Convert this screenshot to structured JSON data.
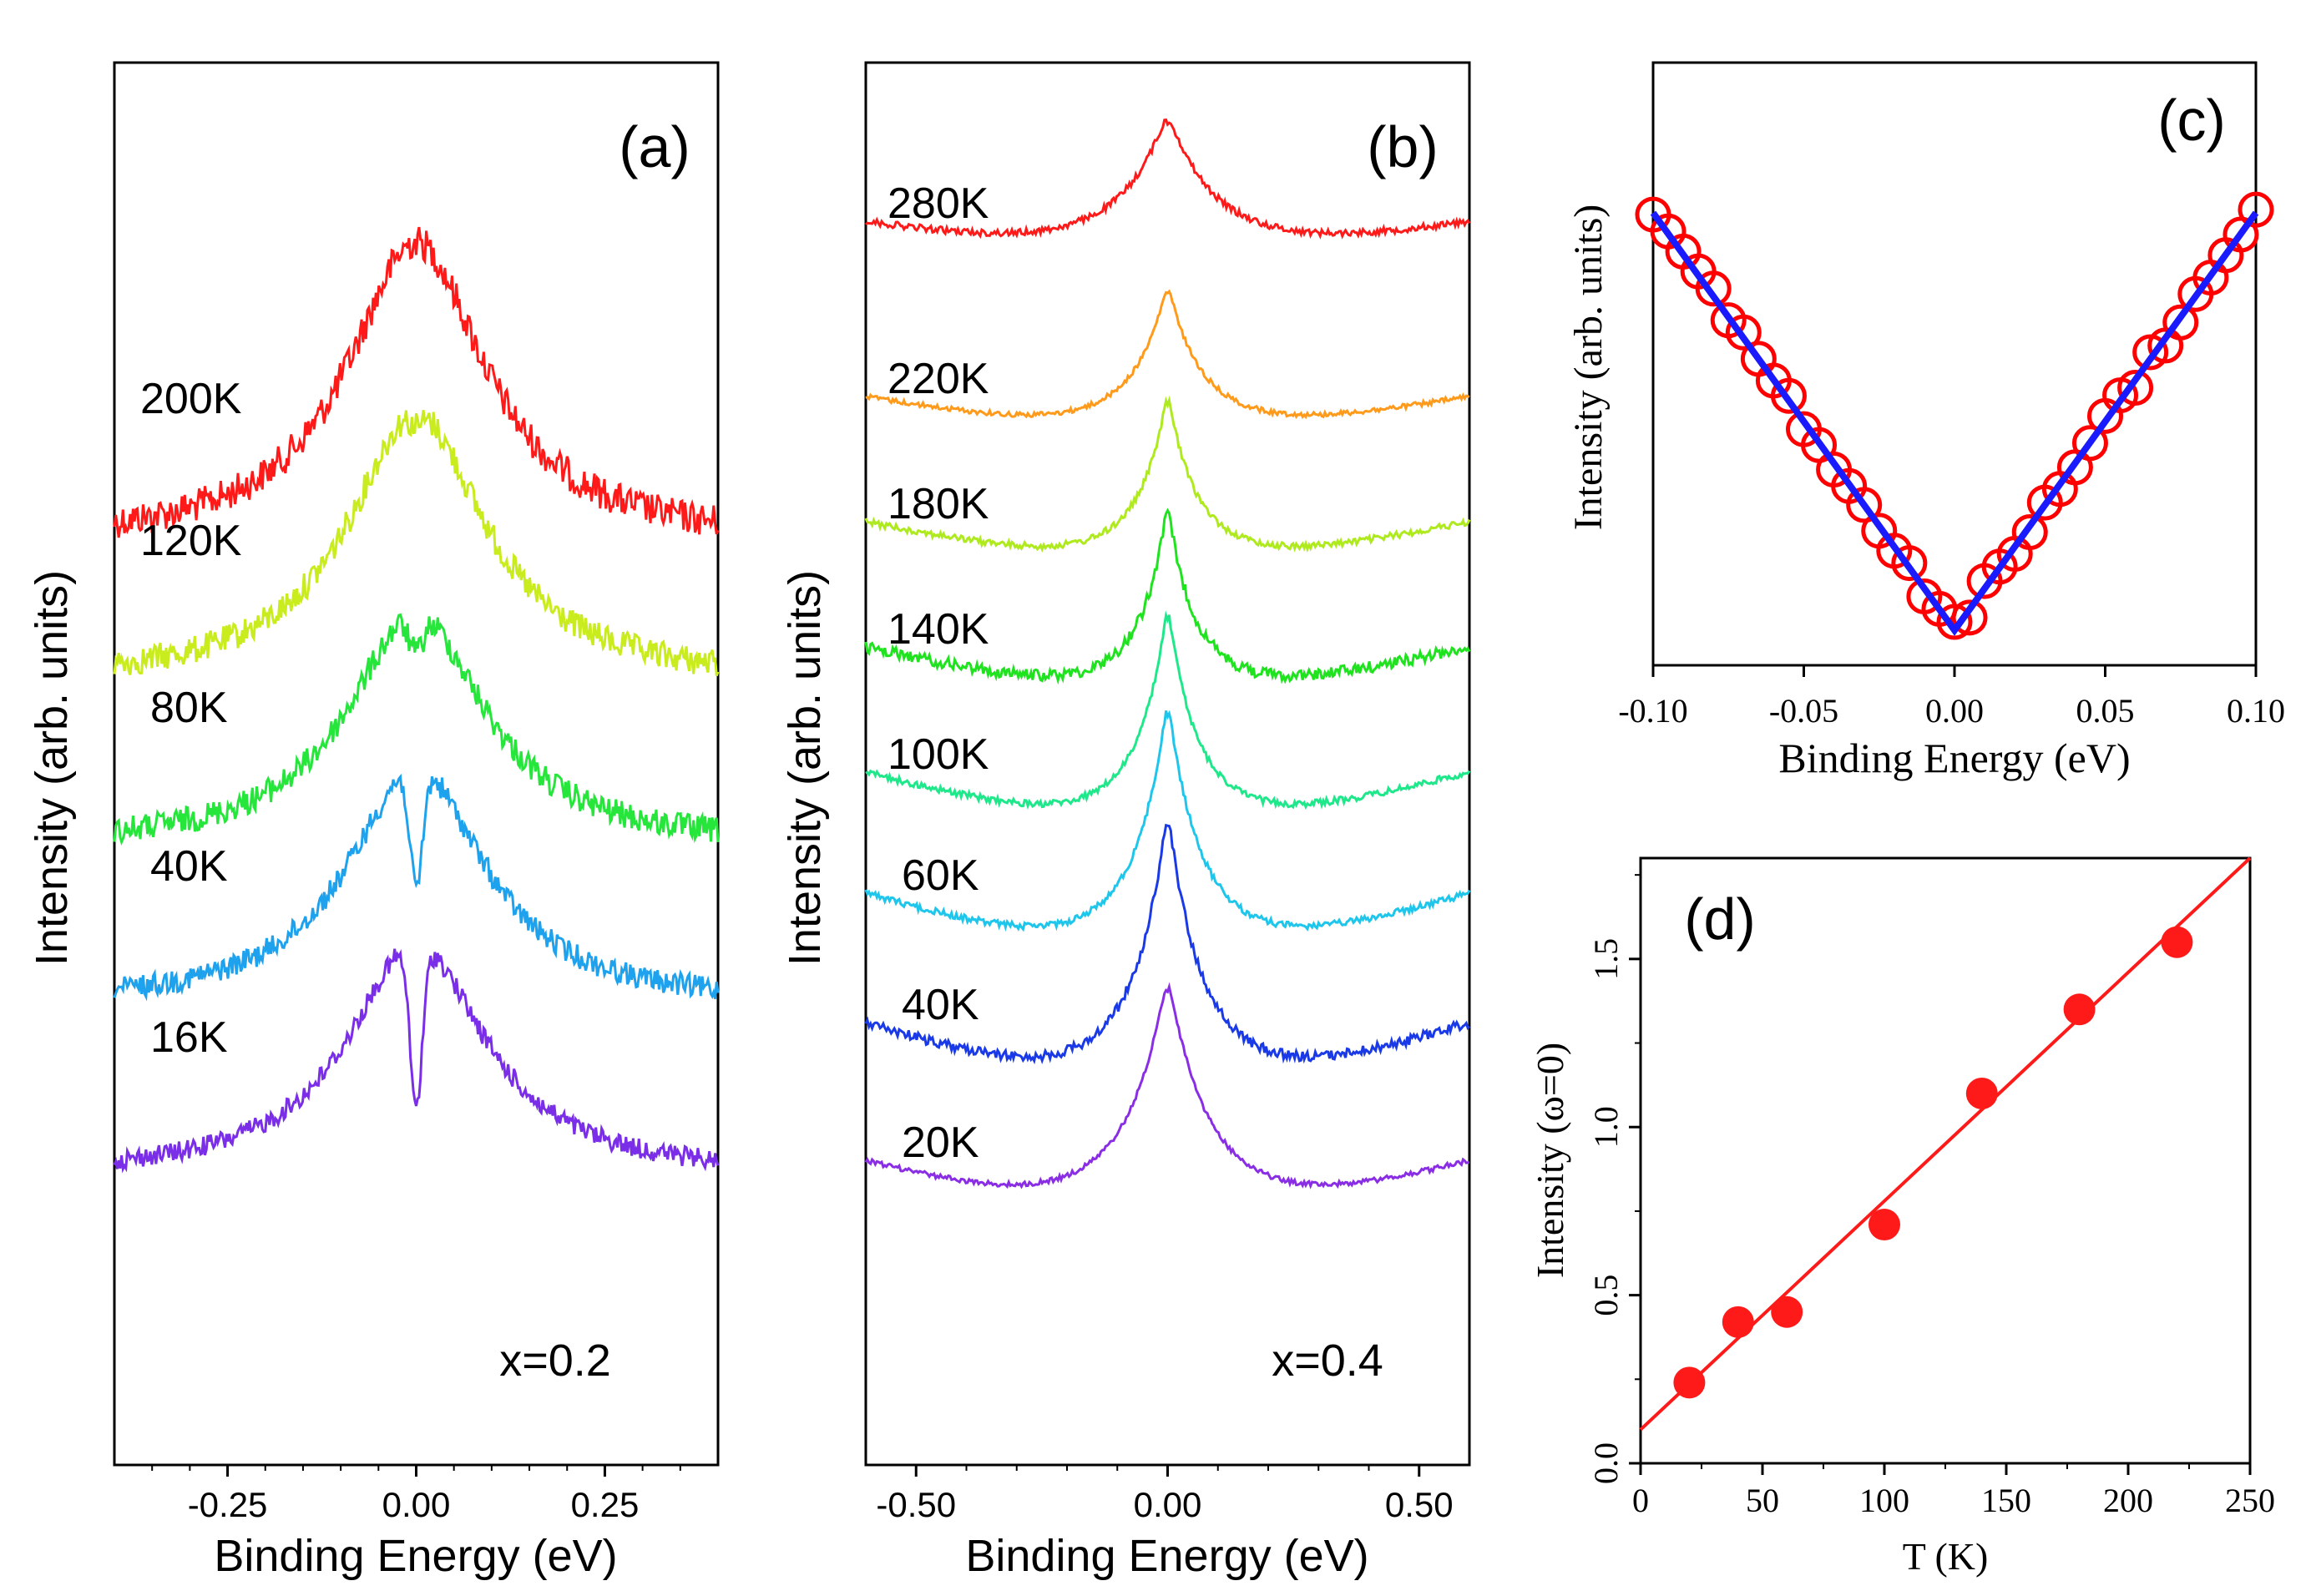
{
  "chart_data": [
    {
      "panel": "(a)",
      "type": "line",
      "title": "",
      "xlabel": "Binding Energy (eV)",
      "ylabel": "Intensity (arb. units)",
      "xlim": [
        -0.4,
        0.4
      ],
      "xticks": [
        -0.25,
        0.0,
        0.25
      ],
      "xtick_labels": [
        "-0.25",
        "0.00",
        "0.25"
      ],
      "annotation": "x=0.2",
      "series": [
        {
          "name": "200K",
          "color": "#ff1a1a"
        },
        {
          "name": "120K",
          "color": "#c8ec1e"
        },
        {
          "name": "80K",
          "color": "#26e63c"
        },
        {
          "name": "40K",
          "color": "#1fa2ee"
        },
        {
          "name": "16K",
          "color": "#7a2ee8"
        }
      ]
    },
    {
      "panel": "(b)",
      "type": "line",
      "title": "",
      "xlabel": "Binding Energy (eV)",
      "ylabel": "Intensity (arb. units)",
      "xlim": [
        -0.6,
        0.6
      ],
      "xticks": [
        -0.5,
        0.0,
        0.5
      ],
      "xtick_labels": [
        "-0.50",
        "0.00",
        "0.50"
      ],
      "annotation": "x=0.4",
      "series": [
        {
          "name": "280K",
          "color": "#ff1a1a"
        },
        {
          "name": "220K",
          "color": "#ff9a1a"
        },
        {
          "name": "180K",
          "color": "#aeea1e"
        },
        {
          "name": "140K",
          "color": "#1ee31e"
        },
        {
          "name": "100K",
          "color": "#1ee88a"
        },
        {
          "name": "60K",
          "color": "#1ec6ec"
        },
        {
          "name": "40K",
          "color": "#1a3ae8"
        },
        {
          "name": "20K",
          "color": "#8a2ee6"
        }
      ]
    },
    {
      "panel": "(c)",
      "type": "scatter",
      "title": "",
      "xlabel": "Binding Energy (eV)",
      "ylabel": "Intensity (arb. units)",
      "xlim": [
        -0.1,
        0.1
      ],
      "xticks": [
        -0.1,
        -0.05,
        0.0,
        0.05,
        0.1
      ],
      "xtick_labels": [
        "-0.10",
        "-0.05",
        "0.00",
        "0.05",
        "0.10"
      ],
      "series": [
        {
          "name": "data",
          "marker": "open-circle",
          "color": "#ff0000",
          "x_start": -0.1,
          "x_end": 0.1,
          "x_step": 0.005
        },
        {
          "name": "linear fit",
          "color": "#1a1aff",
          "x": [
            -0.1,
            0.0,
            0.1
          ],
          "y": [
            1.0,
            0.0,
            1.0
          ]
        }
      ]
    },
    {
      "panel": "(d)",
      "type": "scatter",
      "title": "",
      "xlabel": "T (K)",
      "ylabel": "Intensity (ω=0)",
      "xlim": [
        0,
        250
      ],
      "ylim": [
        0.0,
        1.8
      ],
      "xticks": [
        0,
        50,
        100,
        150,
        200,
        250
      ],
      "xtick_labels": [
        "0",
        "50",
        "100",
        "150",
        "200",
        "250"
      ],
      "yticks": [
        0.0,
        0.5,
        1.0,
        1.5
      ],
      "ytick_labels": [
        "0.0",
        "0.5",
        "1.0",
        "1.5"
      ],
      "series": [
        {
          "name": "data",
          "color": "#ff1a1a",
          "x": [
            20,
            40,
            60,
            100,
            140,
            180,
            220
          ],
          "y": [
            0.24,
            0.42,
            0.45,
            0.71,
            1.1,
            1.35,
            1.55
          ]
        },
        {
          "name": "linear fit",
          "color": "#ff1a1a",
          "x": [
            0,
            250
          ],
          "y": [
            0.1,
            1.8
          ]
        }
      ]
    }
  ]
}
